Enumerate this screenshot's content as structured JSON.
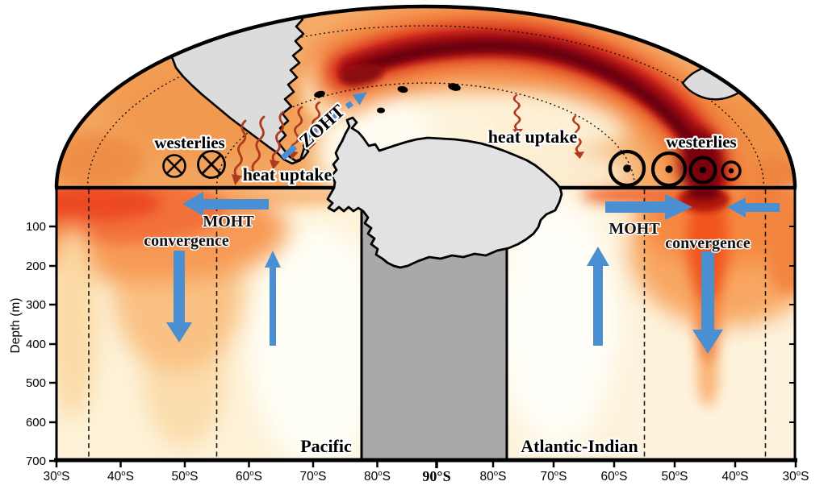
{
  "map": {
    "westerlies_left": "westerlies",
    "westerlies_right": "westerlies",
    "heat_uptake_left": "heat uptake",
    "heat_uptake_right": "heat uptake",
    "zoht_label": "ZOHT",
    "symbols": {
      "wind_into_page": "⊗",
      "wind_out_of_page": "⊙"
    }
  },
  "section_left": {
    "moht_label": "MOHT",
    "convergence_label": "convergence",
    "basin_label": "Pacific"
  },
  "section_right": {
    "moht_label": "MOHT",
    "convergence_label": "convergence",
    "basin_label": "Atlantic-Indian"
  },
  "axes": {
    "ylabel": "Depth (m)",
    "yticks": [
      "100",
      "200",
      "300",
      "400",
      "500",
      "600",
      "700"
    ],
    "xticks_left": [
      "30°S",
      "40°S",
      "50°S",
      "60°S",
      "70°S",
      "80°S"
    ],
    "xtick_center": "90°S",
    "xticks_right": [
      "80°S",
      "70°S",
      "60°S",
      "50°S",
      "40°S",
      "30°S"
    ]
  },
  "colors": {
    "arrow_blue": "#4a8fd2",
    "heat_arrow_red": "#b03a20",
    "land_map_gray": "#dcdcdc",
    "land_section_gray": "#a9a9a9",
    "warm_band_dark_red": "#6b0008",
    "surface_hotspot_red": "#ec4a22",
    "ocean_base_orange": "#f5ad69",
    "section_base_cream": "#fdf2d8"
  }
}
